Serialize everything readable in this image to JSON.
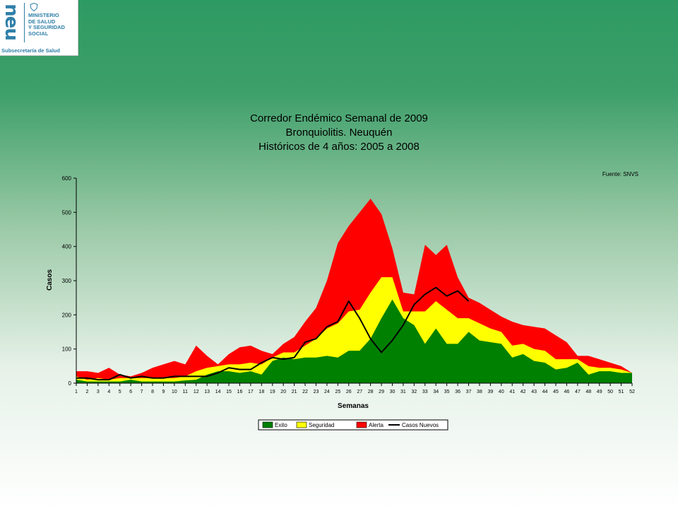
{
  "logo": {
    "mark": "neu",
    "ministry": "MINISTERIO\nDE SALUD\nY SEGURIDAD\nSOCIAL",
    "subtitle": "Subsecretaría de Salud"
  },
  "chart_data": {
    "type": "area",
    "title": [
      "Corredor Endémico Semanal de 2009",
      "Bronquiolitis.  Neuquén",
      "Históricos de 4 años: 2005 a 2008"
    ],
    "source": "Fuente: SNVS",
    "xlabel": "Semanas",
    "ylabel": "Casos",
    "ylim": [
      0,
      600
    ],
    "yticks": [
      0,
      100,
      200,
      300,
      400,
      500,
      600
    ],
    "categories": [
      "1",
      "2",
      "3",
      "4",
      "5",
      "6",
      "7",
      "8",
      "9",
      "10",
      "11",
      "12",
      "13",
      "14",
      "15",
      "16",
      "17",
      "18",
      "19",
      "20",
      "21",
      "22",
      "23",
      "24",
      "25",
      "26",
      "27",
      "28",
      "29",
      "30",
      "31",
      "32",
      "33",
      "34",
      "35",
      "36",
      "37",
      "38",
      "39",
      "40",
      "41",
      "42",
      "43",
      "44",
      "45",
      "46",
      "47",
      "48",
      "49",
      "50",
      "51",
      "52"
    ],
    "legend_position": "bottom",
    "series": [
      {
        "name": "Exito",
        "kind": "area",
        "color": "#008000",
        "values": [
          10,
          5,
          5,
          5,
          5,
          10,
          5,
          5,
          5,
          5,
          8,
          10,
          25,
          35,
          35,
          30,
          35,
          25,
          65,
          75,
          70,
          75,
          75,
          80,
          75,
          95,
          95,
          130,
          190,
          245,
          190,
          170,
          115,
          160,
          115,
          115,
          150,
          125,
          120,
          115,
          75,
          85,
          65,
          60,
          40,
          45,
          60,
          25,
          35,
          35,
          30,
          30
        ]
      },
      {
        "name": "Seguridad",
        "kind": "area",
        "color": "#ffff00",
        "values": [
          20,
          10,
          15,
          10,
          15,
          15,
          15,
          15,
          15,
          15,
          20,
          35,
          45,
          50,
          55,
          55,
          60,
          55,
          75,
          90,
          90,
          110,
          130,
          160,
          175,
          210,
          215,
          265,
          310,
          310,
          210,
          210,
          210,
          240,
          215,
          190,
          190,
          175,
          160,
          150,
          110,
          115,
          100,
          95,
          70,
          70,
          70,
          50,
          45,
          45,
          40,
          30
        ]
      },
      {
        "name": "Alerta",
        "kind": "area",
        "color": "#ff0000",
        "values": [
          35,
          35,
          30,
          45,
          25,
          20,
          30,
          45,
          55,
          65,
          55,
          110,
          80,
          55,
          85,
          105,
          110,
          95,
          85,
          115,
          135,
          180,
          220,
          300,
          410,
          460,
          500,
          540,
          495,
          395,
          265,
          260,
          405,
          375,
          405,
          310,
          250,
          235,
          215,
          195,
          180,
          170,
          165,
          160,
          140,
          120,
          80,
          80,
          70,
          60,
          50,
          30
        ]
      },
      {
        "name": "Casos Nuevos",
        "kind": "line",
        "color": "#000000",
        "values": [
          15,
          15,
          10,
          10,
          25,
          15,
          20,
          15,
          15,
          20,
          20,
          20,
          20,
          30,
          45,
          40,
          40,
          60,
          75,
          70,
          75,
          120,
          130,
          165,
          180,
          240,
          190,
          130,
          90,
          125,
          170,
          230,
          260,
          280,
          255,
          270,
          240,
          null,
          null,
          null,
          null,
          null,
          null,
          null,
          null,
          null,
          null,
          null,
          null,
          null,
          null,
          null
        ]
      }
    ]
  }
}
